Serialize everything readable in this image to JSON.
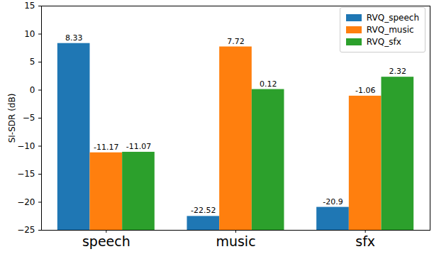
{
  "chart_data": {
    "type": "bar",
    "categories": [
      "speech",
      "music",
      "sfx"
    ],
    "series": [
      {
        "name": "RVQ_speech",
        "color": "#1f77b4",
        "values": [
          8.33,
          -22.52,
          -20.9
        ]
      },
      {
        "name": "RVQ_music",
        "color": "#ff7f0e",
        "values": [
          -11.17,
          7.72,
          -1.06
        ]
      },
      {
        "name": "RVQ_sfx",
        "color": "#2ca02c",
        "values": [
          -11.07,
          0.12,
          2.32
        ]
      }
    ],
    "y_label": "SI-SDR (dB)",
    "ylim": [
      -25,
      15
    ],
    "yticks": [
      -25,
      -20,
      -15,
      -10,
      -5,
      0,
      5,
      10,
      15
    ],
    "legend": "upper right",
    "data_labels": true,
    "grid": false
  }
}
